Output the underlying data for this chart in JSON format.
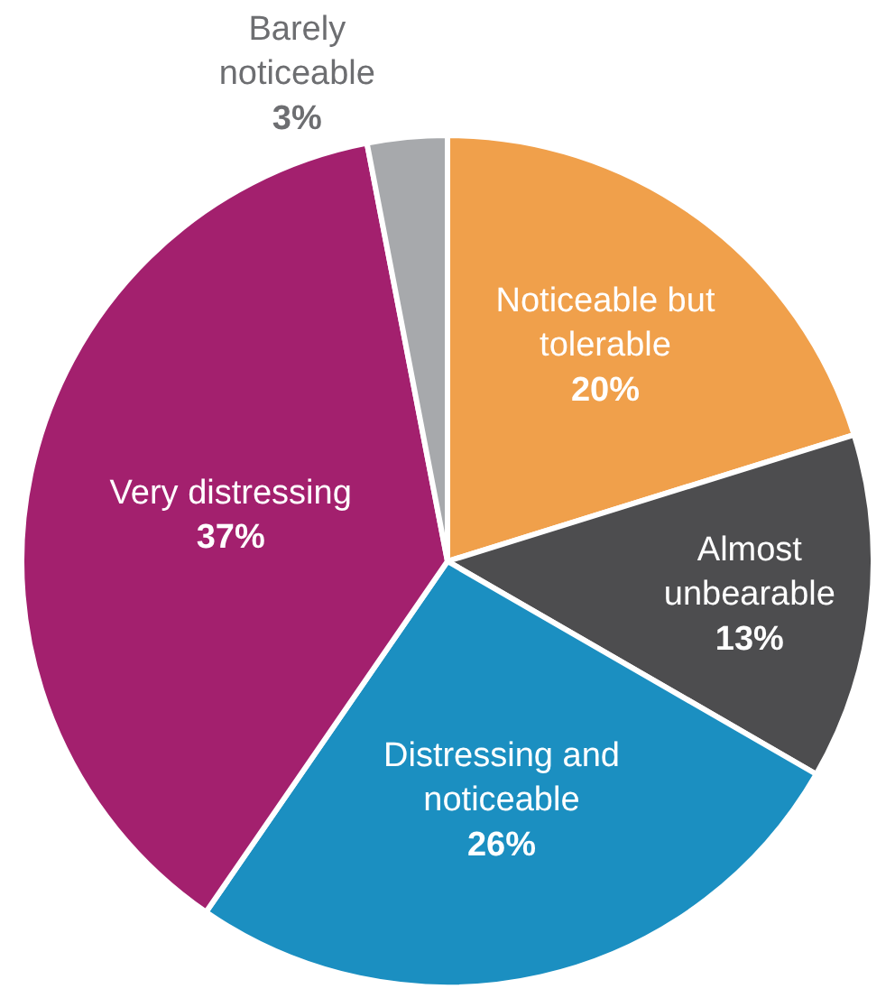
{
  "chart_data": {
    "type": "pie",
    "categories": [
      "Noticeable but tolerable",
      "Almost unbearable",
      "Distressing and noticeable",
      "Very distressing",
      "Barely noticeable"
    ],
    "values": [
      20,
      13,
      26,
      37,
      3
    ],
    "value_labels": [
      "20%",
      "13%",
      "26%",
      "37%",
      "3%"
    ],
    "colors": [
      "#f0a04b",
      "#4d4d4f",
      "#1b8fc1",
      "#a3206e",
      "#a7a9ac"
    ],
    "legend": false
  }
}
